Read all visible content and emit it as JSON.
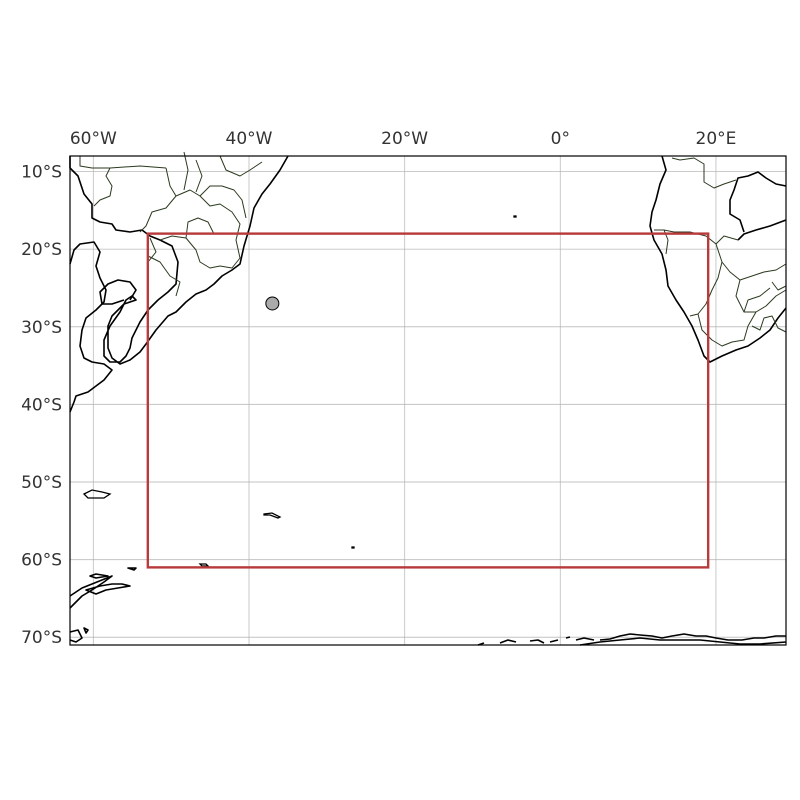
{
  "map": {
    "projection": "PlateCarree",
    "extent": {
      "lon": [
        -63,
        29
      ],
      "lat": [
        -71,
        -8
      ]
    },
    "lon_ticks": [
      {
        "value": -60,
        "label": "60°W"
      },
      {
        "value": -40,
        "label": "40°W"
      },
      {
        "value": -20,
        "label": "20°W"
      },
      {
        "value": 0,
        "label": "0°"
      },
      {
        "value": 20,
        "label": "20°E"
      }
    ],
    "lat_ticks": [
      {
        "value": -10,
        "label": "10°S"
      },
      {
        "value": -20,
        "label": "20°S"
      },
      {
        "value": -30,
        "label": "30°S"
      },
      {
        "value": -40,
        "label": "40°S"
      },
      {
        "value": -50,
        "label": "50°S"
      },
      {
        "value": -60,
        "label": "60°S"
      },
      {
        "value": -70,
        "label": "70°S"
      }
    ],
    "gridlines": true,
    "region_box": {
      "lon": [
        -53,
        19
      ],
      "lat": [
        -61,
        -18
      ],
      "color": "#b83a3a"
    },
    "marker": {
      "lon": -37,
      "lat": -27,
      "color": "#aaaaaa",
      "edge": "#000000"
    },
    "colors": {
      "coast": "#000000",
      "borders": "#2b3a1f",
      "grid": "#b0b0b0"
    }
  }
}
